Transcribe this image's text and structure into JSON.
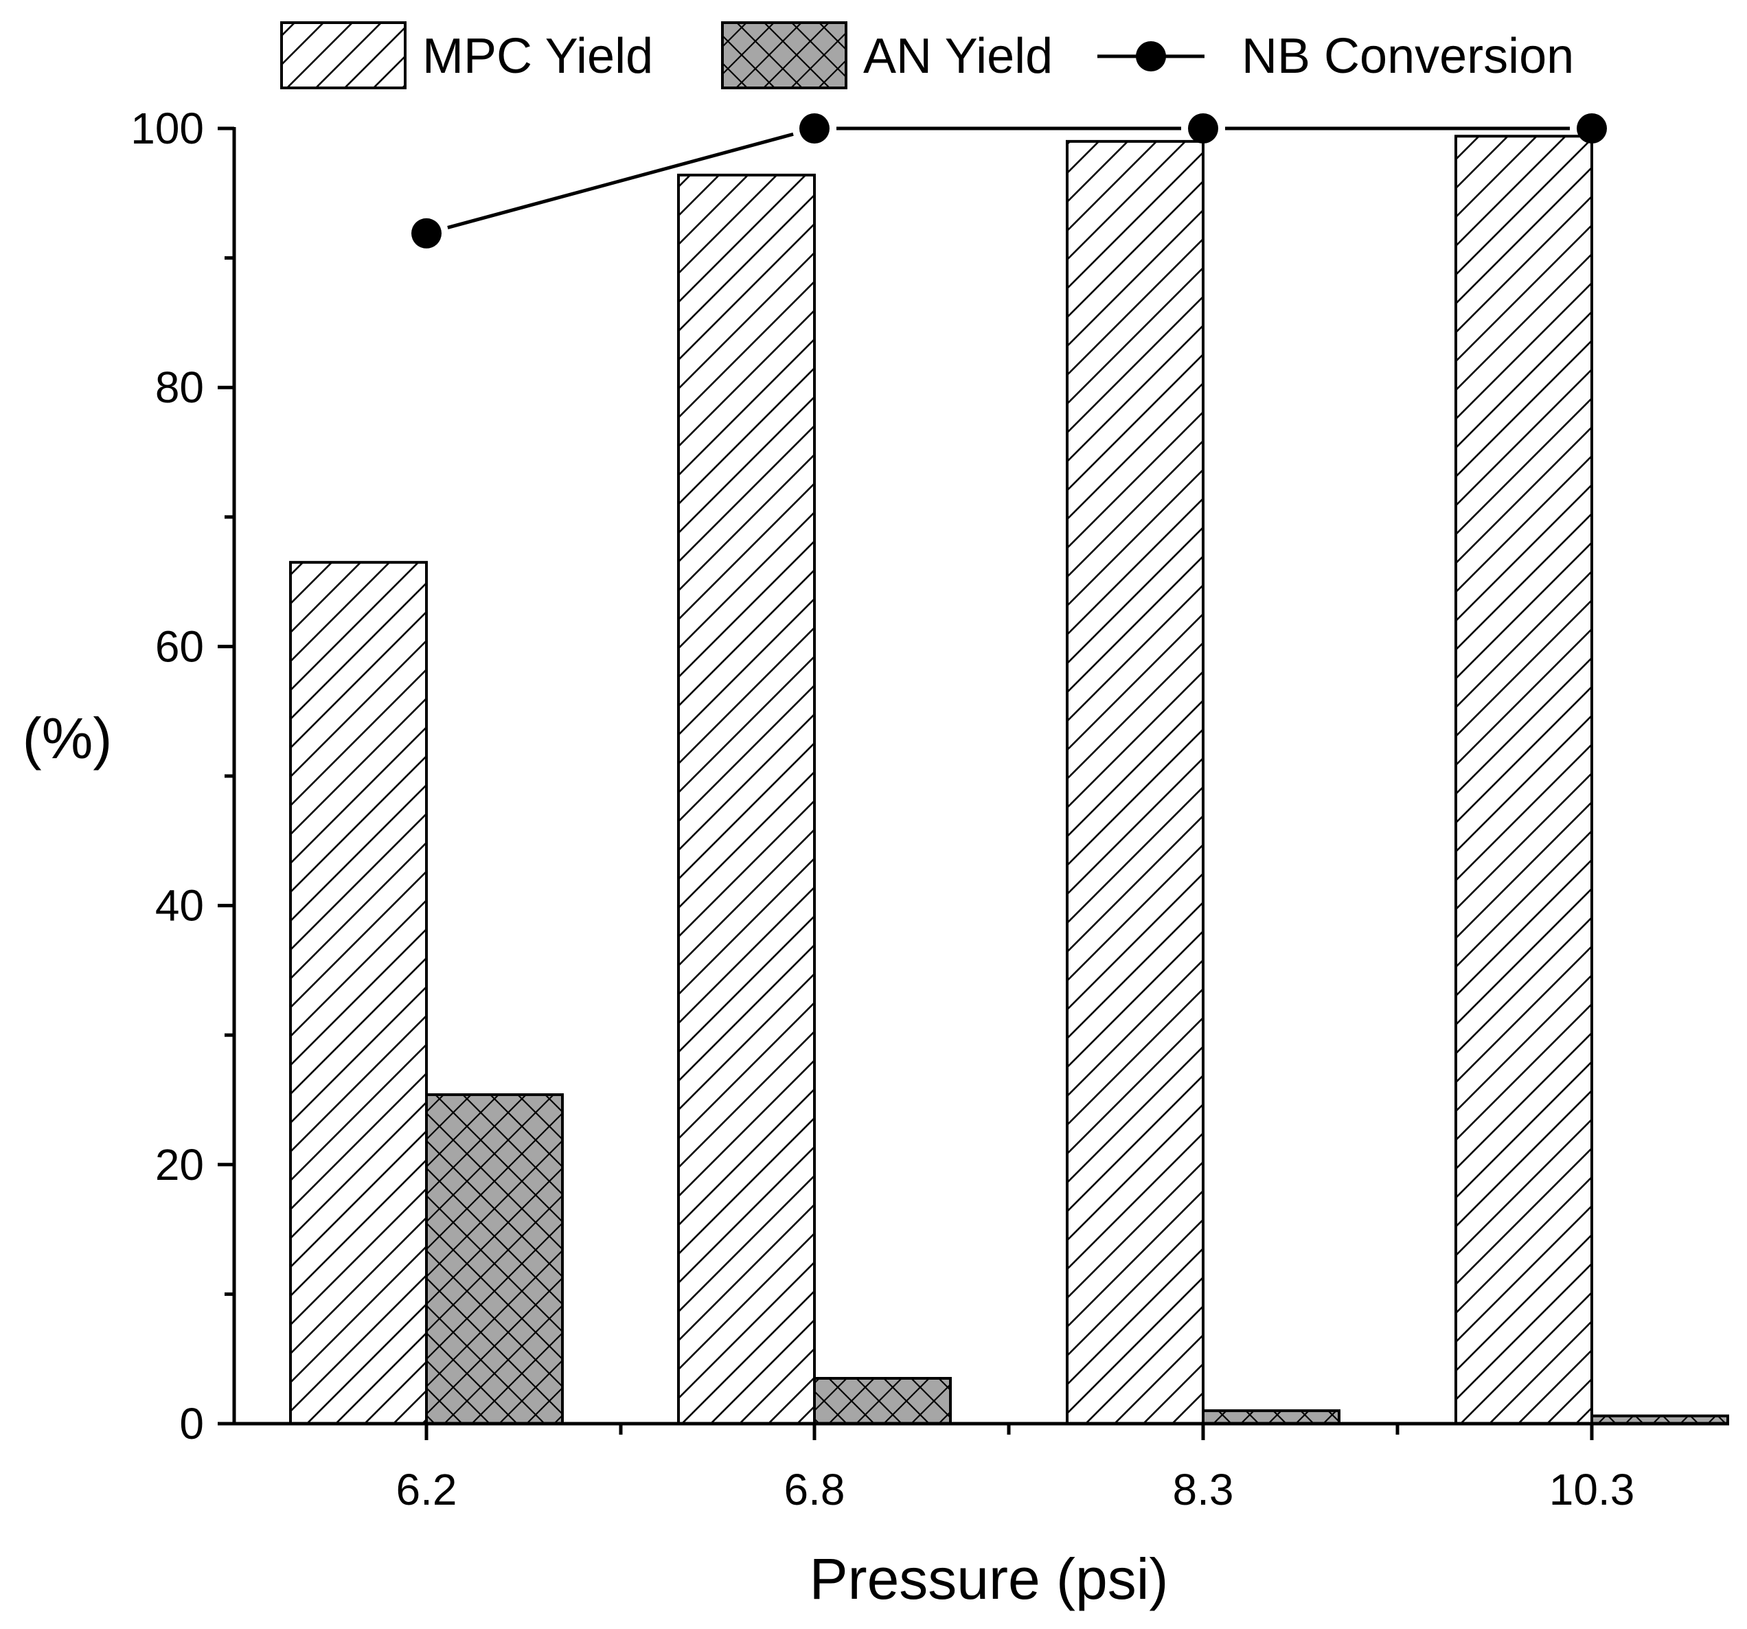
{
  "chart_data": {
    "type": "bar",
    "title": "",
    "xlabel": "Pressure (psi)",
    "ylabel": "(%)",
    "categories": [
      "6.2",
      "6.8",
      "8.3",
      "10.3"
    ],
    "ylim": [
      0,
      100
    ],
    "yticks_major": [
      0,
      20,
      40,
      60,
      80,
      100
    ],
    "yticks_minor": [
      10,
      30,
      50,
      70,
      90
    ],
    "series": [
      {
        "name": "MPC Yield",
        "kind": "bar",
        "pattern": "diagonal-hatch",
        "values": [
          66.5,
          96.4,
          99.0,
          99.4
        ]
      },
      {
        "name": "AN Yield",
        "kind": "bar",
        "pattern": "cross-hatch-gray",
        "values": [
          25.4,
          3.5,
          1.0,
          0.6
        ]
      },
      {
        "name": "NB Conversion",
        "kind": "line-marker",
        "values": [
          91.9,
          100.0,
          100.0,
          100.0
        ]
      }
    ],
    "legend_position": "top",
    "grid": false,
    "colors": {
      "axis": "#000000",
      "bar_fill": "#ffffff",
      "an_fill": "#a6a6a6",
      "line": "#000000"
    }
  }
}
